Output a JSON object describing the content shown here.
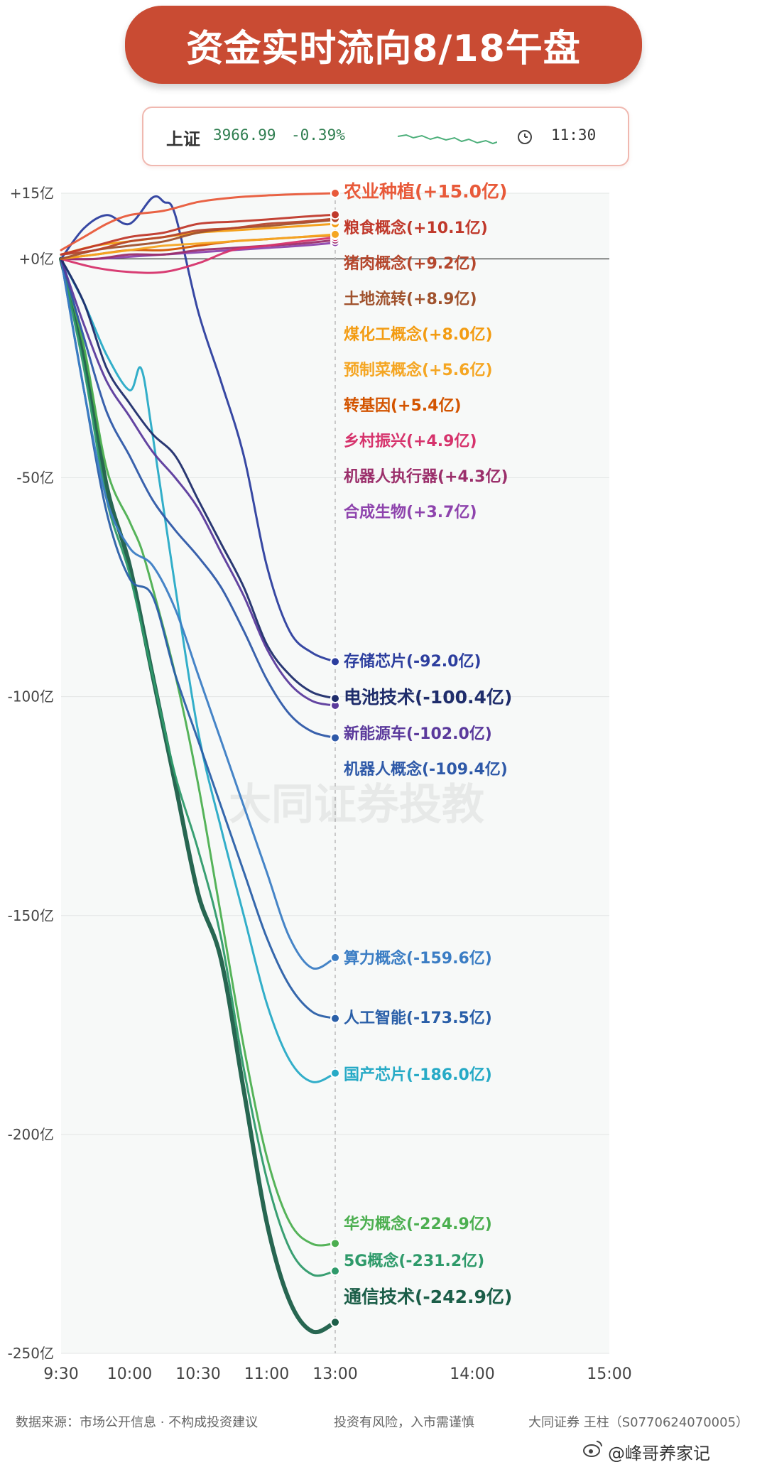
{
  "title": "资金实时流向8/18午盘",
  "index": {
    "name": "上证",
    "value": "3966.99",
    "change": "-0.39%",
    "time": "11:30",
    "time_icon": "clock-icon",
    "sparkline_color": "#4caf7a"
  },
  "watermark": "大同证券投教",
  "footer": {
    "source": "数据来源：市场公开信息 · 不构成投资建议",
    "risk": "投资有风险，入市需谨慎",
    "broker": "大同证券 王柱（S0770624070005）"
  },
  "weibo": {
    "icon": "weibo-icon",
    "handle": "@峰哥养家记"
  },
  "chart_data": {
    "type": "line",
    "x_ticks": [
      "9:30",
      "10:00",
      "10:30",
      "11:00",
      "13:00",
      "14:00",
      "15:00"
    ],
    "y_ticks": [
      "+15亿",
      "+0亿",
      "-50亿",
      "-100亿",
      "-150亿",
      "-200亿",
      "-250亿"
    ],
    "y_tick_values": [
      15,
      0,
      -50,
      -100,
      -150,
      -200,
      -250
    ],
    "ylim": [
      -250,
      15
    ],
    "x_times": [
      0,
      30,
      60,
      90,
      120,
      180,
      240
    ],
    "current_time": 120,
    "grid": "horizontal",
    "series": [
      {
        "name": "农业种植",
        "label": "农业种植(+15.0亿)",
        "final": 15.0,
        "color": "#e85a3a",
        "x": [
          0,
          10,
          20,
          30,
          45,
          60,
          75,
          90,
          105,
          120
        ],
        "y": [
          2,
          5,
          8,
          10,
          11,
          13,
          14,
          14.5,
          14.8,
          15.0
        ]
      },
      {
        "name": "粮食概念",
        "label": "粮食概念(+10.1亿)",
        "final": 10.1,
        "color": "#c0392b",
        "x": [
          0,
          15,
          30,
          45,
          60,
          75,
          90,
          105,
          120
        ],
        "y": [
          1,
          3,
          5,
          6,
          8,
          8.5,
          9,
          9.6,
          10.1
        ]
      },
      {
        "name": "猪肉概念",
        "label": "猪肉概念(+9.2亿)",
        "final": 9.2,
        "color": "#b5472d",
        "x": [
          0,
          15,
          30,
          45,
          60,
          75,
          90,
          105,
          120
        ],
        "y": [
          1,
          2,
          4,
          5,
          6.5,
          7,
          8,
          8.5,
          9.2
        ]
      },
      {
        "name": "土地流转",
        "label": "土地流转(+8.9亿)",
        "final": 8.9,
        "color": "#a0522d",
        "x": [
          0,
          15,
          30,
          45,
          60,
          75,
          90,
          105,
          120
        ],
        "y": [
          0,
          2,
          3,
          4,
          6,
          7,
          7.5,
          8.2,
          8.9
        ]
      },
      {
        "name": "煤化工概念",
        "label": "煤化工概念(+8.0亿)",
        "final": 8.0,
        "color": "#f39c12",
        "x": [
          0,
          15,
          30,
          45,
          60,
          75,
          90,
          105,
          120
        ],
        "y": [
          1,
          3,
          4,
          5,
          6,
          6.5,
          7,
          7.5,
          8.0
        ]
      },
      {
        "name": "预制菜概念",
        "label": "预制菜概念(+5.6亿)",
        "final": 5.6,
        "color": "#f5a623",
        "x": [
          0,
          15,
          30,
          45,
          60,
          75,
          90,
          105,
          120
        ],
        "y": [
          0,
          1,
          2,
          3,
          3.5,
          4,
          4.5,
          5,
          5.6
        ]
      },
      {
        "name": "转基因",
        "label": "转基因(+5.4亿)",
        "final": 5.4,
        "color": "#d35400",
        "x": [
          0,
          15,
          30,
          45,
          60,
          75,
          90,
          105,
          120
        ],
        "y": [
          0,
          1,
          2,
          2,
          3,
          4,
          4.5,
          5,
          5.4
        ]
      },
      {
        "name": "乡村振兴",
        "label": "乡村振兴(+4.9亿)",
        "final": 4.9,
        "color": "#d6336c",
        "x": [
          0,
          15,
          30,
          45,
          60,
          75,
          90,
          105,
          120
        ],
        "y": [
          0,
          -2,
          -3,
          -3,
          -1,
          2,
          3,
          4,
          4.9
        ]
      },
      {
        "name": "机器人执行器",
        "label": "机器人执行器(+4.3亿)",
        "final": 4.3,
        "color": "#9b2f6b",
        "x": [
          0,
          15,
          30,
          45,
          60,
          75,
          90,
          105,
          120
        ],
        "y": [
          0,
          0,
          1,
          1,
          2,
          2.5,
          3,
          3.5,
          4.3
        ]
      },
      {
        "name": "合成生物",
        "label": "合成生物(+3.7亿)",
        "final": 3.7,
        "color": "#8e44ad",
        "x": [
          0,
          15,
          30,
          45,
          60,
          75,
          90,
          105,
          120
        ],
        "y": [
          0,
          0,
          0.5,
          1,
          1.5,
          2,
          2.5,
          3,
          3.7
        ]
      },
      {
        "name": "存储芯片",
        "label": "存储芯片(-92.0亿)",
        "final": -92.0,
        "color": "#2c3e9e",
        "x": [
          0,
          10,
          20,
          30,
          40,
          45,
          50,
          60,
          70,
          80,
          90,
          100,
          110,
          120
        ],
        "y": [
          0,
          7,
          10,
          8,
          14,
          13,
          10,
          -12,
          -28,
          -45,
          -70,
          -85,
          -90,
          -92.0
        ]
      },
      {
        "name": "电池技术",
        "label": "电池技术(-100.4亿)",
        "final": -100.4,
        "color": "#1f2d6b",
        "x": [
          0,
          10,
          20,
          30,
          40,
          50,
          60,
          70,
          80,
          90,
          100,
          110,
          120
        ],
        "y": [
          0,
          -10,
          -25,
          -33,
          -40,
          -45,
          -55,
          -65,
          -75,
          -88,
          -95,
          -99,
          -100.4
        ]
      },
      {
        "name": "新能源车",
        "label": "新能源车(-102.0亿)",
        "final": -102.0,
        "color": "#5b3a9c",
        "x": [
          0,
          10,
          20,
          30,
          40,
          50,
          60,
          70,
          80,
          90,
          100,
          110,
          120
        ],
        "y": [
          0,
          -15,
          -28,
          -36,
          -44,
          -50,
          -57,
          -67,
          -77,
          -89,
          -97,
          -101,
          -102.0
        ]
      },
      {
        "name": "机器人概念",
        "label": "机器人概念(-109.4亿)",
        "final": -109.4,
        "color": "#2e59a8",
        "x": [
          0,
          10,
          20,
          30,
          40,
          50,
          60,
          70,
          80,
          90,
          100,
          110,
          120
        ],
        "y": [
          0,
          -18,
          -35,
          -45,
          -55,
          -62,
          -68,
          -75,
          -85,
          -96,
          -104,
          -108,
          -109.4
        ]
      },
      {
        "name": "算力概念",
        "label": "算力概念(-159.6亿)",
        "final": -159.6,
        "color": "#3b7dc4",
        "x": [
          0,
          10,
          20,
          30,
          40,
          50,
          60,
          70,
          80,
          90,
          100,
          110,
          120
        ],
        "y": [
          0,
          -30,
          -55,
          -66,
          -70,
          -80,
          -95,
          -110,
          -125,
          -140,
          -155,
          -162,
          -159.6
        ]
      },
      {
        "name": "人工智能",
        "label": "人工智能(-173.5亿)",
        "final": -173.5,
        "color": "#2a5fa8",
        "x": [
          0,
          10,
          20,
          30,
          40,
          50,
          60,
          70,
          80,
          90,
          100,
          110,
          120
        ],
        "y": [
          0,
          -30,
          -58,
          -73,
          -77,
          -95,
          -110,
          -125,
          -140,
          -155,
          -166,
          -172,
          -173.5
        ]
      },
      {
        "name": "国产芯片",
        "label": "国产芯片(-186.0亿)",
        "final": -186.0,
        "color": "#27aac6",
        "x": [
          0,
          10,
          20,
          30,
          35,
          40,
          50,
          60,
          70,
          80,
          90,
          100,
          110,
          120
        ],
        "y": [
          0,
          -10,
          -22,
          -30,
          -25,
          -40,
          -75,
          -108,
          -130,
          -150,
          -170,
          -183,
          -188,
          -186.0
        ]
      },
      {
        "name": "华为概念",
        "label": "华为概念(-224.9亿)",
        "final": -224.9,
        "color": "#4caf50",
        "x": [
          0,
          10,
          20,
          30,
          35,
          40,
          50,
          60,
          70,
          80,
          90,
          100,
          110,
          120
        ],
        "y": [
          0,
          -20,
          -48,
          -60,
          -66,
          -75,
          -95,
          -120,
          -150,
          -180,
          -205,
          -220,
          -225,
          -224.9
        ]
      },
      {
        "name": "5G概念",
        "label": "5G概念(-231.2亿)",
        "final": -231.2,
        "color": "#2e9a6a",
        "x": [
          0,
          10,
          20,
          30,
          40,
          50,
          60,
          70,
          80,
          90,
          100,
          110,
          120
        ],
        "y": [
          0,
          -25,
          -55,
          -72,
          -95,
          -118,
          -135,
          -155,
          -185,
          -210,
          -226,
          -232,
          -231.2
        ]
      },
      {
        "name": "通信技术",
        "label": "通信技术(-242.9亿)",
        "final": -242.9,
        "color": "#1b5e48",
        "x": [
          0,
          10,
          20,
          30,
          40,
          50,
          60,
          70,
          80,
          90,
          100,
          110,
          120
        ],
        "y": [
          0,
          -22,
          -52,
          -70,
          -95,
          -120,
          -145,
          -160,
          -190,
          -220,
          -238,
          -245,
          -242.9
        ]
      }
    ]
  }
}
